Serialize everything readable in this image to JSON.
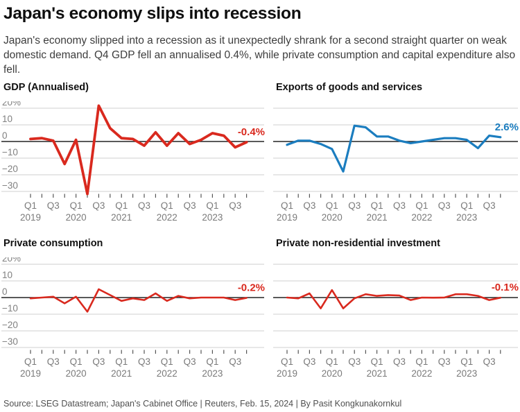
{
  "header": {
    "title": "Japan's economy slips into recession",
    "subtitle": "Japan's economy slipped into a recession as it unexpectedly shrank for a second straight quarter on weak domestic demand. Q4 GDP fell an annualised 0.4%, while private consumption and capital expenditure also fell."
  },
  "footer": {
    "source": "Source: LSEG Datastream; Japan's Cabinet Office | Reuters, Feb. 15, 2024 | By Pasit Kongkunakornkul"
  },
  "colors": {
    "red": "#d9291e",
    "blue": "#1b7dbf",
    "grid": "#cfcfcf",
    "zero_line": "#222222",
    "tick": "#555555",
    "axis_text": "#7a7a7a",
    "y_label_text": "#808080"
  },
  "x_axis": {
    "quarter_labels": [
      "Q1",
      "Q3",
      "Q1",
      "Q3",
      "Q1",
      "Q3",
      "Q1",
      "Q3",
      "Q1",
      "Q3"
    ],
    "year_labels": [
      "2019",
      "2020",
      "2021",
      "2022",
      "2023"
    ]
  },
  "chart_data": [
    {
      "type": "line",
      "id": "gdp",
      "title": "GDP (Annualised)",
      "end_label": "-0.4%",
      "color_key": "red",
      "unit": "%",
      "show_y_axis_labels": true,
      "y_tick_labels": [
        "20%",
        "10",
        "0",
        "−10",
        "−20",
        "−30"
      ],
      "y_gridline_values": [
        20,
        10,
        0,
        -10,
        -20,
        -30
      ],
      "ylim": [
        -35,
        25
      ],
      "categories": [
        "2019 Q1",
        "2019 Q2",
        "2019 Q3",
        "2019 Q4",
        "2020 Q1",
        "2020 Q2",
        "2020 Q3",
        "2020 Q4",
        "2021 Q1",
        "2021 Q2",
        "2021 Q3",
        "2021 Q4",
        "2022 Q1",
        "2022 Q2",
        "2022 Q3",
        "2022 Q4",
        "2023 Q1",
        "2023 Q2",
        "2023 Q3",
        "2023 Q4"
      ],
      "values": [
        1.5,
        2.0,
        0.5,
        -13.5,
        1.0,
        -31.5,
        21.5,
        8.0,
        2.0,
        1.5,
        -2.5,
        5.5,
        -2.5,
        5.0,
        -1.5,
        1.0,
        5.0,
        3.5,
        -3.5,
        -0.4
      ]
    },
    {
      "type": "line",
      "id": "exports",
      "title": "Exports of goods and services",
      "end_label": "2.6%",
      "color_key": "blue",
      "unit": "%",
      "show_y_axis_labels": false,
      "y_tick_labels": [
        "20%",
        "10",
        "0",
        "−10",
        "−20",
        "−30"
      ],
      "y_gridline_values": [
        20,
        10,
        0,
        -10,
        -20,
        -30
      ],
      "ylim": [
        -35,
        25
      ],
      "categories": [
        "2019 Q1",
        "2019 Q2",
        "2019 Q3",
        "2019 Q4",
        "2020 Q1",
        "2020 Q2",
        "2020 Q3",
        "2020 Q4",
        "2021 Q1",
        "2021 Q2",
        "2021 Q3",
        "2021 Q4",
        "2022 Q1",
        "2022 Q2",
        "2022 Q3",
        "2022 Q4",
        "2023 Q1",
        "2023 Q2",
        "2023 Q3",
        "2023 Q4"
      ],
      "values": [
        -2.0,
        0.5,
        0.5,
        -1.5,
        -4.5,
        -18.0,
        9.5,
        8.5,
        3.0,
        3.0,
        0.5,
        -1.0,
        0.0,
        1.0,
        2.0,
        2.0,
        1.0,
        -4.0,
        3.5,
        2.6
      ]
    },
    {
      "type": "line",
      "id": "consumption",
      "title": "Private consumption",
      "end_label": "-0.2%",
      "color_key": "red",
      "unit": "%",
      "show_y_axis_labels": true,
      "y_tick_labels": [
        "20%",
        "10",
        "0",
        "−10",
        "−20",
        "−30"
      ],
      "y_gridline_values": [
        20,
        10,
        0,
        -10,
        -20,
        -30
      ],
      "ylim": [
        -35,
        25
      ],
      "categories": [
        "2019 Q1",
        "2019 Q2",
        "2019 Q3",
        "2019 Q4",
        "2020 Q1",
        "2020 Q2",
        "2020 Q3",
        "2020 Q4",
        "2021 Q1",
        "2021 Q2",
        "2021 Q3",
        "2021 Q4",
        "2022 Q1",
        "2022 Q2",
        "2022 Q3",
        "2022 Q4",
        "2023 Q1",
        "2023 Q2",
        "2023 Q3",
        "2023 Q4"
      ],
      "values": [
        -0.5,
        0.0,
        0.5,
        -3.5,
        0.5,
        -8.5,
        5.0,
        1.5,
        -2.0,
        -0.5,
        -1.5,
        2.5,
        -2.0,
        1.0,
        -0.5,
        0.0,
        0.0,
        0.0,
        -1.5,
        -0.2
      ]
    },
    {
      "type": "line",
      "id": "investment",
      "title": "Private non-residential investment",
      "end_label": "-0.1%",
      "color_key": "red",
      "unit": "%",
      "show_y_axis_labels": false,
      "y_tick_labels": [
        "20%",
        "10",
        "0",
        "−10",
        "−20",
        "−30"
      ],
      "y_gridline_values": [
        20,
        10,
        0,
        -10,
        -20,
        -30
      ],
      "ylim": [
        -35,
        25
      ],
      "categories": [
        "2019 Q1",
        "2019 Q2",
        "2019 Q3",
        "2019 Q4",
        "2020 Q1",
        "2020 Q2",
        "2020 Q3",
        "2020 Q4",
        "2021 Q1",
        "2021 Q2",
        "2021 Q3",
        "2021 Q4",
        "2022 Q1",
        "2022 Q2",
        "2022 Q3",
        "2022 Q4",
        "2023 Q1",
        "2023 Q2",
        "2023 Q3",
        "2023 Q4"
      ],
      "values": [
        0.0,
        -0.5,
        2.5,
        -6.5,
        4.5,
        -6.5,
        -0.5,
        2.0,
        1.0,
        1.5,
        1.2,
        -1.5,
        0.0,
        -0.1,
        0.0,
        2.0,
        2.0,
        1.0,
        -1.5,
        -0.1
      ]
    }
  ]
}
